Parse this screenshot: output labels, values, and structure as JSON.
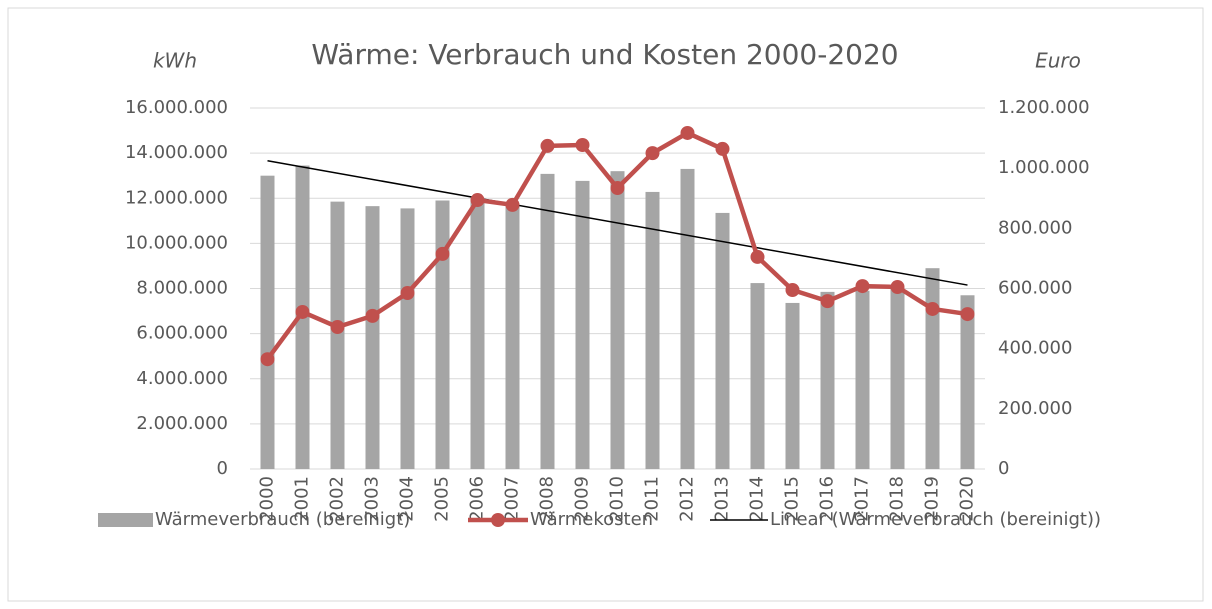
{
  "chart_data": {
    "type": "bar_line",
    "title": "Wärme: Verbrauch und Kosten 2000-2020",
    "y_label": "kWh",
    "y2_label": "Euro",
    "categories": [
      "2000",
      "2001",
      "2002",
      "2003",
      "2004",
      "2005",
      "2006",
      "2007",
      "2008",
      "2009",
      "2010",
      "2011",
      "2012",
      "2013",
      "2014",
      "2015",
      "2016",
      "2017",
      "2018",
      "2019",
      "2020"
    ],
    "series": [
      {
        "name": "Wärmeverbrauch (bereinigt)",
        "color": "#a5a5a5",
        "type": "bar",
        "values": [
          13000000,
          13450000,
          11850000,
          11650000,
          11550000,
          11900000,
          12000000,
          11700000,
          13080000,
          12770000,
          13200000,
          12280000,
          13300000,
          11350000,
          8240000,
          7360000,
          7850000,
          7900000,
          8000000,
          8900000,
          7700000
        ]
      },
      {
        "name": "Wärmekosten",
        "color": "#c0504d",
        "type": "line",
        "axis": "y2",
        "values": [
          365000,
          522000,
          472000,
          509000,
          585000,
          715000,
          894000,
          878000,
          1074000,
          1077000,
          934000,
          1050000,
          1117000,
          1064000,
          705000,
          595000,
          558000,
          608000,
          605000,
          532000,
          515000
        ]
      }
    ],
    "trendline": {
      "name": "Linear (Wärmeverbrauch (bereinigt))",
      "color": "#000000",
      "of_series": 0
    },
    "ylim": [
      0,
      16000000
    ],
    "yticks": [
      0,
      {
        "value": 2000000,
        "label": "2.000.000"
      },
      {
        "value": 4000000,
        "label": "4.000.000"
      },
      {
        "value": 6000000,
        "label": "6.000.000"
      },
      {
        "value": 8000000,
        "label": "8.000.000"
      },
      {
        "value": 10000000,
        "label": "10.000.000"
      },
      {
        "value": 12000000,
        "label": "12.000.000"
      },
      {
        "value": 14000000,
        "label": "14.000.000"
      },
      {
        "value": 16000000,
        "label": "16.000.000"
      }
    ],
    "y2lim": [
      0,
      1200000
    ],
    "y2ticks": [
      0,
      {
        "value": 200000,
        "label": "200.000"
      },
      {
        "value": 400000,
        "label": "400.000"
      },
      {
        "value": 600000,
        "label": "600.000"
      },
      {
        "value": 800000,
        "label": "800.000"
      },
      {
        "value": 1000000,
        "label": "1.000.000"
      },
      {
        "value": 1200000,
        "label": "1.200.000"
      }
    ],
    "grid": true,
    "legend": "bottom"
  }
}
